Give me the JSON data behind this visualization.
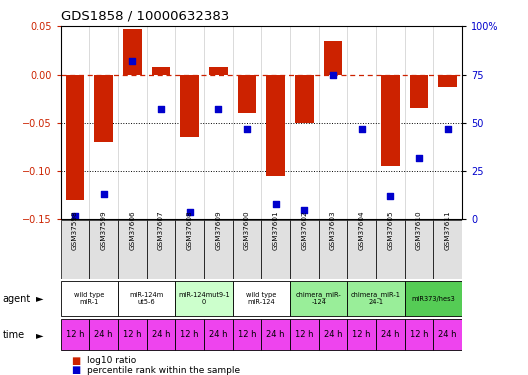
{
  "title": "GDS1858 / 10000632383",
  "samples": [
    "GSM37598",
    "GSM37599",
    "GSM37606",
    "GSM37607",
    "GSM37608",
    "GSM37609",
    "GSM37600",
    "GSM37601",
    "GSM37602",
    "GSM37603",
    "GSM37604",
    "GSM37605",
    "GSM37610",
    "GSM37611"
  ],
  "log10_ratio": [
    -0.13,
    -0.07,
    0.047,
    0.008,
    -0.065,
    0.008,
    -0.04,
    -0.105,
    -0.05,
    0.035,
    -0.001,
    -0.095,
    -0.035,
    -0.013
  ],
  "percentile_rank": [
    2,
    13,
    82,
    57,
    4,
    57,
    47,
    8,
    5,
    75,
    47,
    12,
    32,
    47
  ],
  "agent_groups": [
    {
      "label": "wild type\nmiR-1",
      "start": 0,
      "end": 2,
      "color": "#ffffff"
    },
    {
      "label": "miR-124m\nut5-6",
      "start": 2,
      "end": 4,
      "color": "#ffffff"
    },
    {
      "label": "miR-124mut9-1\n0",
      "start": 4,
      "end": 6,
      "color": "#ccffcc"
    },
    {
      "label": "wild type\nmiR-124",
      "start": 6,
      "end": 8,
      "color": "#ffffff"
    },
    {
      "label": "chimera_miR-\n-124",
      "start": 8,
      "end": 10,
      "color": "#99ee99"
    },
    {
      "label": "chimera_miR-1\n24-1",
      "start": 10,
      "end": 12,
      "color": "#99ee99"
    },
    {
      "label": "miR373/hes3",
      "start": 12,
      "end": 14,
      "color": "#55cc55"
    }
  ],
  "time_labels": [
    "12 h",
    "24 h",
    "12 h",
    "24 h",
    "12 h",
    "24 h",
    "12 h",
    "24 h",
    "12 h",
    "24 h",
    "12 h",
    "24 h",
    "12 h",
    "24 h"
  ],
  "time_color": "#ee44ee",
  "bar_color": "#cc2200",
  "scatter_color": "#0000cc",
  "ylim_left": [
    -0.15,
    0.05
  ],
  "ylim_right": [
    0,
    100
  ],
  "left_yticks": [
    -0.15,
    -0.1,
    -0.05,
    0,
    0.05
  ],
  "right_yticks": [
    0,
    25,
    50,
    75,
    100
  ],
  "right_yticklabels": [
    "0",
    "25",
    "50",
    "75",
    "100%"
  ]
}
